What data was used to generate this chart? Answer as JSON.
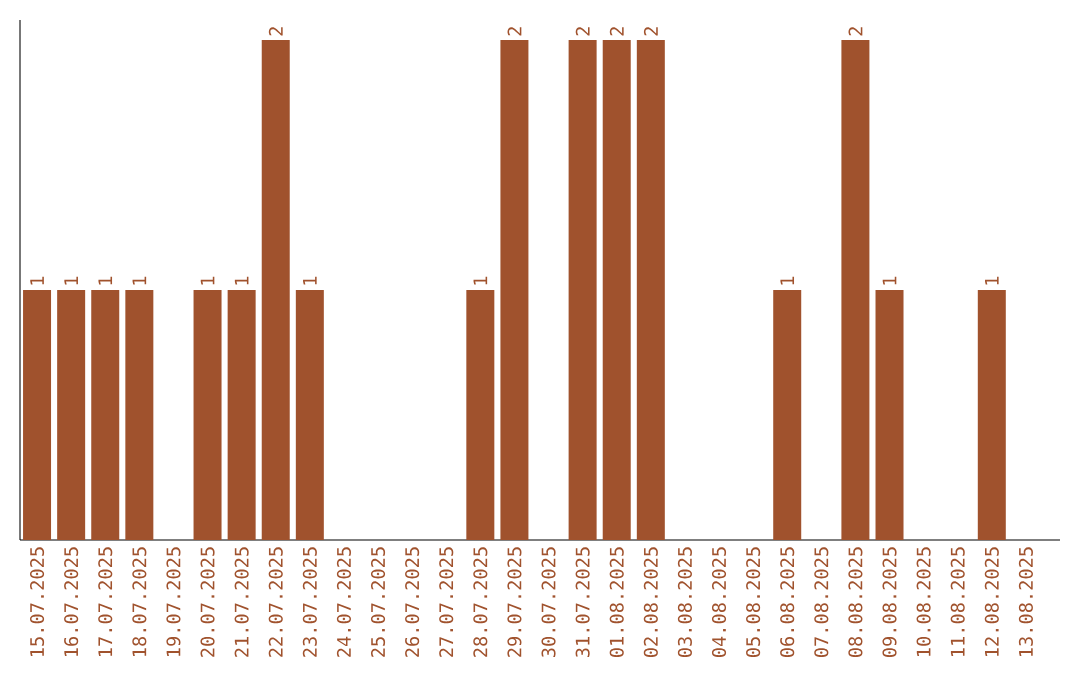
{
  "chart_data": {
    "type": "bar",
    "color": "#a0522d",
    "categories": [
      "15.07.2025",
      "16.07.2025",
      "17.07.2025",
      "18.07.2025",
      "19.07.2025",
      "20.07.2025",
      "21.07.2025",
      "22.07.2025",
      "23.07.2025",
      "24.07.2025",
      "25.07.2025",
      "26.07.2025",
      "27.07.2025",
      "28.07.2025",
      "29.07.2025",
      "30.07.2025",
      "31.07.2025",
      "01.08.2025",
      "02.08.2025",
      "03.08.2025",
      "04.08.2025",
      "05.08.2025",
      "06.08.2025",
      "07.08.2025",
      "08.08.2025",
      "09.08.2025",
      "10.08.2025",
      "11.08.2025",
      "12.08.2025",
      "13.08.2025"
    ],
    "values": [
      1,
      1,
      1,
      1,
      0,
      1,
      1,
      2,
      1,
      0,
      0,
      0,
      0,
      1,
      2,
      0,
      2,
      2,
      2,
      0,
      0,
      0,
      1,
      0,
      2,
      1,
      0,
      0,
      1,
      0
    ],
    "value_labels": [
      "1",
      "1",
      "1",
      "1",
      null,
      "1",
      "1",
      "2",
      "1",
      null,
      null,
      null,
      null,
      "1",
      "2",
      null,
      "2",
      "2",
      "2",
      null,
      null,
      null,
      "1",
      null,
      "2",
      "1",
      null,
      null,
      "1",
      null
    ]
  }
}
